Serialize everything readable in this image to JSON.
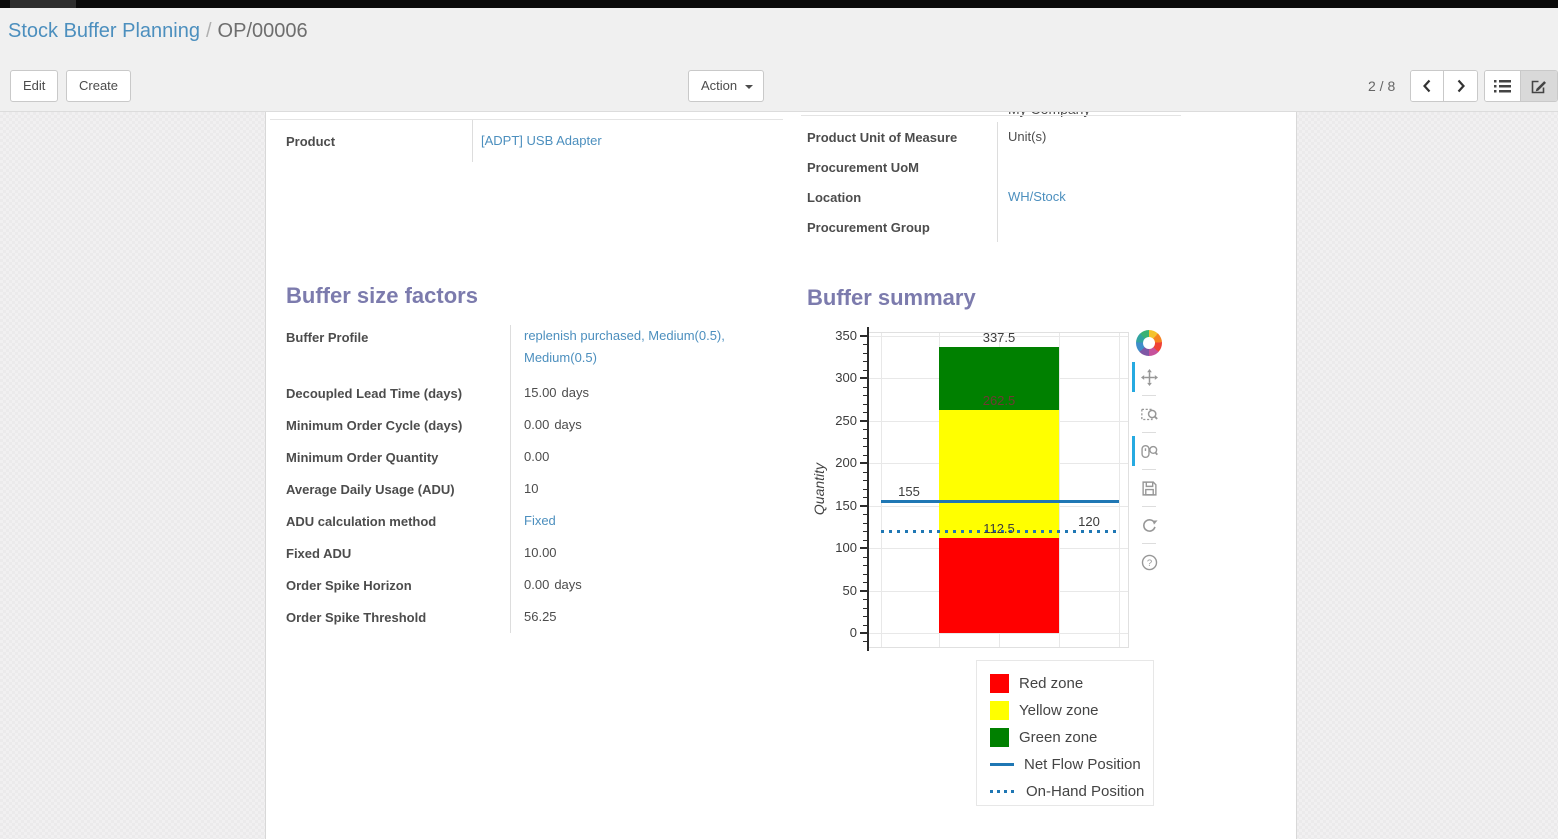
{
  "breadcrumb": {
    "link": "Stock Buffer Planning",
    "separator": "/",
    "current": "OP/00006"
  },
  "control_panel": {
    "edit_label": "Edit",
    "create_label": "Create",
    "action_label": "Action",
    "pager": "2 / 8"
  },
  "sheet": {
    "clipped_row_value": "My Company",
    "main_left": [
      {
        "label": "Product",
        "value": "[ADPT] USB Adapter",
        "is_link": true
      }
    ],
    "main_right": [
      {
        "label": "Product Unit of Measure",
        "value": "Unit(s)",
        "is_link": false
      },
      {
        "label": "Procurement UoM",
        "value": "",
        "is_link": false
      },
      {
        "label": "Location",
        "value": "WH/Stock",
        "is_link": true
      },
      {
        "label": "Procurement Group",
        "value": "",
        "is_link": false
      }
    ],
    "factors_title": "Buffer size factors",
    "factors": [
      {
        "label": "Buffer Profile",
        "value": "replenish purchased, Medium(0.5), Medium(0.5)",
        "is_link": true,
        "tall": true
      },
      {
        "label": "Decoupled Lead Time (days)",
        "value": "15.00",
        "suffix": "days"
      },
      {
        "label": "Minimum Order Cycle (days)",
        "value": "0.00",
        "suffix": "days"
      },
      {
        "label": "Minimum Order Quantity",
        "value": "0.00"
      },
      {
        "label": "Average Daily Usage (ADU)",
        "value": "10"
      },
      {
        "label": "ADU calculation method",
        "value": "Fixed",
        "is_link": true
      },
      {
        "label": "Fixed ADU",
        "value": "10.00"
      },
      {
        "label": "Order Spike Horizon",
        "value": "0.00",
        "suffix": "days"
      },
      {
        "label": "Order Spike Threshold",
        "value": "56.25"
      }
    ],
    "summary_title": "Buffer summary"
  },
  "chart_data": {
    "type": "bar",
    "title": "Buffer summary",
    "xlabel": "",
    "ylabel": "Quantity",
    "ylim": [
      0,
      350
    ],
    "yticks": [
      0,
      50,
      100,
      150,
      200,
      250,
      300,
      350
    ],
    "minor_tick_step": 10,
    "grid": true,
    "zones": [
      {
        "label": "Red zone",
        "from": 0,
        "to": 112.5,
        "color": "#ff0000"
      },
      {
        "label": "Yellow zone",
        "from": 112.5,
        "to": 262.5,
        "color": "#ffff00"
      },
      {
        "label": "Green zone",
        "from": 262.5,
        "to": 337.5,
        "color": "#008000"
      }
    ],
    "lines": [
      {
        "label": "Net Flow Position",
        "value": 155,
        "style": "solid",
        "color": "#1f77b4"
      },
      {
        "label": "On-Hand Position",
        "value": 120,
        "style": "dotted",
        "color": "#1f77b4"
      }
    ],
    "annotations": [
      {
        "text": "337.5",
        "anchor": "bar",
        "y": 337.5,
        "color": "#3c3c3c"
      },
      {
        "text": "262.5",
        "anchor": "bar",
        "y": 262.5,
        "color": "#6e3a33"
      },
      {
        "text": "112.5",
        "anchor": "bar",
        "y": 112.5,
        "color": "#3c3c3c"
      },
      {
        "text": "155",
        "anchor": "left",
        "y": 155,
        "color": "#3c3c3c"
      },
      {
        "text": "120",
        "anchor": "right",
        "y": 120,
        "color": "#3c3c3c"
      }
    ],
    "legend_position": "below",
    "legend": [
      {
        "label": "Red zone",
        "swatch": "square",
        "color": "#ff0000"
      },
      {
        "label": "Yellow zone",
        "swatch": "square",
        "color": "#ffff00"
      },
      {
        "label": "Green zone",
        "swatch": "square",
        "color": "#008000"
      },
      {
        "label": "Net Flow Position",
        "swatch": "line-solid",
        "color": "#1f77b4"
      },
      {
        "label": "On-Hand Position",
        "swatch": "line-dotted",
        "color": "#1f77b4"
      }
    ],
    "toolbar": [
      "pan",
      "box-zoom",
      "wheel-zoom",
      "save",
      "reset",
      "help"
    ],
    "toolbar_active": [
      "pan",
      "wheel-zoom"
    ]
  },
  "colors": {
    "link": "#4c8fbe",
    "section_title": "#7c7bad",
    "bokeh_blue": "#1f77b4",
    "active_tool_indicator": "#26aae1"
  }
}
